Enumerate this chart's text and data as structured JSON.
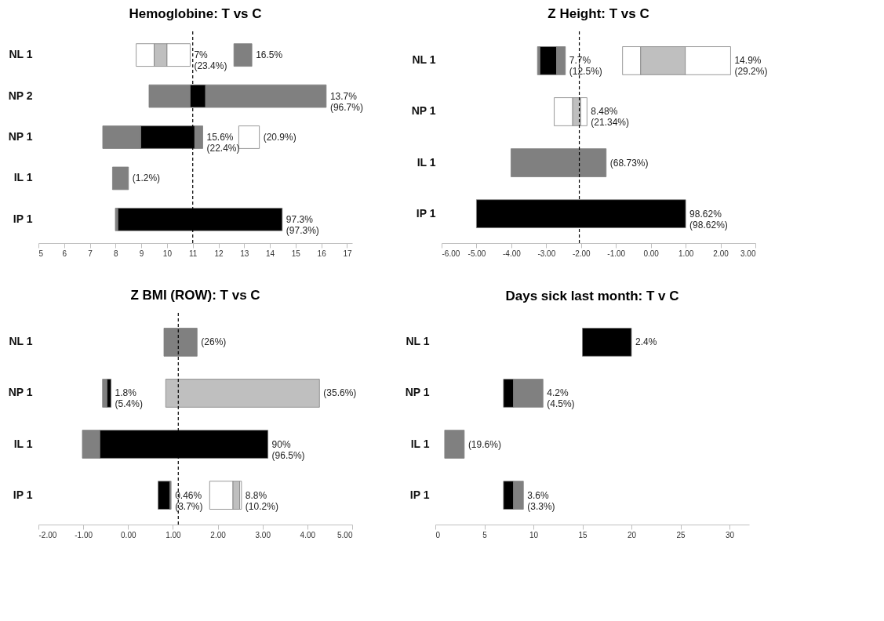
{
  "chart_data": [
    {
      "type": "bar",
      "orientation": "horizontal",
      "title": "Hemoglobine: T vs C",
      "categories": [
        "NL 1",
        "NP 2",
        "NP 1",
        "IL 1",
        "IP 1"
      ],
      "xlim": [
        5,
        17.2
      ],
      "xticks": [
        5,
        6,
        7,
        8,
        9,
        10,
        11,
        12,
        13,
        14,
        15,
        16,
        17
      ],
      "series": [
        {
          "color": "#808080",
          "base": [
            12.6,
            9.3,
            7.5,
            7.88,
            7.99
          ],
          "values": [
            0.7,
            1.6,
            1.48,
            0.62,
            0.1
          ]
        },
        {
          "color": "#000000",
          "base": [
            null,
            10.9,
            8.98,
            null,
            8.09
          ],
          "values": [
            null,
            0.6,
            2.1,
            null,
            6.39
          ]
        },
        {
          "color": "#808080",
          "base": [
            null,
            11.5,
            11.08,
            null,
            null
          ],
          "values": [
            null,
            4.69,
            0.31,
            null,
            null
          ]
        },
        {
          "color": "#ffffff",
          "base": [
            8.8,
            null,
            12.79,
            null,
            null
          ],
          "values": [
            0.7,
            null,
            0.8,
            null,
            null
          ]
        },
        {
          "color": "#bfbfbf",
          "base": [
            9.5,
            null,
            null,
            null,
            null
          ],
          "values": [
            0.5,
            null,
            null,
            null,
            null
          ]
        },
        {
          "color": "#ffffff",
          "base": [
            10.0,
            null,
            null,
            null,
            null
          ],
          "values": [
            0.9,
            null,
            null,
            null,
            null
          ]
        }
      ],
      "ref_lines": [
        {
          "axis": "x",
          "value": 11.0
        }
      ],
      "annotations": [
        {
          "text": "7%\n(23.4%)",
          "x": 10.9,
          "y": "NL 1"
        },
        {
          "text": "16.5%",
          "x": 13.3,
          "y": "NL 1"
        },
        {
          "text": "13.7%\n(96.7%)",
          "x": 16.19,
          "y": "NP 2"
        },
        {
          "text": "15.6%\n(22.4%)",
          "x": 11.39,
          "y": "NP 1"
        },
        {
          "text": "(20.9%)",
          "x": 13.59,
          "y": "NP 1"
        },
        {
          "text": "(1.2%)",
          "x": 8.5,
          "y": "IL 1"
        },
        {
          "text": "97.3%\n(97.3%)",
          "x": 14.48,
          "y": "IP 1"
        }
      ]
    },
    {
      "type": "bar",
      "orientation": "horizontal",
      "title": "Z Height: T vs C",
      "categories": [
        "NL 1",
        "NP 1",
        "IL 1",
        "IP 1"
      ],
      "xlim": [
        -6,
        3
      ],
      "xticks": [
        {
          "value": -6,
          "label": "-6.00"
        },
        {
          "value": -5,
          "label": "-5.00"
        },
        {
          "value": -4,
          "label": "-4.00"
        },
        {
          "value": -3,
          "label": "-3.00"
        },
        {
          "value": -2,
          "label": "-2.00"
        },
        {
          "value": -1,
          "label": "-1.00"
        },
        {
          "value": 0,
          "label": "0.00"
        },
        {
          "value": 1,
          "label": "1.00"
        },
        {
          "value": 2,
          "label": "2.00"
        },
        {
          "value": 3,
          "label": "3.00"
        }
      ],
      "series": [
        {
          "color": "#808080",
          "base": [
            -3.25,
            null,
            -4.01,
            null
          ],
          "values": [
            0.07,
            null,
            2.73,
            null
          ]
        },
        {
          "color": "#000000",
          "base": [
            -3.18,
            null,
            null,
            -5.0
          ],
          "values": [
            0.48,
            null,
            null,
            6.0
          ]
        },
        {
          "color": "#808080",
          "base": [
            -2.7,
            null,
            null,
            null
          ],
          "values": [
            0.25,
            null,
            null,
            null
          ]
        },
        {
          "color": "#ffffff",
          "base": [
            -0.81,
            -2.77,
            null,
            null
          ],
          "values": [
            0.52,
            0.53,
            null,
            null
          ]
        },
        {
          "color": "#bfbfbf",
          "base": [
            -0.29,
            -2.24,
            null,
            null
          ],
          "values": [
            1.28,
            0.23,
            null,
            null
          ]
        },
        {
          "color": "#ffffff",
          "base": [
            0.99,
            -2.01,
            null,
            null
          ],
          "values": [
            1.3,
            0.18,
            null,
            null
          ]
        }
      ],
      "ref_lines": [
        {
          "axis": "x",
          "value": -2.05
        }
      ],
      "annotations": [
        {
          "text": "7.7%\n(12.5%)",
          "x": -2.45,
          "y": "NL 1"
        },
        {
          "text": "14.9%\n(29.2%)",
          "x": 2.29,
          "y": "NL 1"
        },
        {
          "text": "8.48%\n(21.34%)",
          "x": -1.83,
          "y": "NP 1"
        },
        {
          "text": "(68.73%)",
          "x": -1.28,
          "y": "IL 1"
        },
        {
          "text": "98.62%\n(98.62%)",
          "x": 1.0,
          "y": "IP 1"
        }
      ]
    },
    {
      "type": "bar",
      "orientation": "horizontal",
      "title": "Z BMI (ROW): T vs C",
      "categories": [
        "NL 1",
        "NP 1",
        "IL 1",
        "IP 1"
      ],
      "xlim": [
        -2,
        5
      ],
      "xticks": [
        {
          "value": -2,
          "label": "-2.00"
        },
        {
          "value": -1,
          "label": "-1.00"
        },
        {
          "value": 0,
          "label": "0.00"
        },
        {
          "value": 1,
          "label": "1.00"
        },
        {
          "value": 2,
          "label": "2.00"
        },
        {
          "value": 3,
          "label": "3.00"
        },
        {
          "value": 4,
          "label": "4.00"
        },
        {
          "value": 5,
          "label": "5.00"
        }
      ],
      "series": [
        {
          "color": "#808080",
          "base": [
            0.8,
            -0.57,
            -1.02,
            0.93
          ],
          "values": [
            0.74,
            0.1,
            0.39,
            0.03
          ]
        },
        {
          "color": "#000000",
          "base": [
            null,
            -0.47,
            -0.63,
            0.67
          ],
          "values": [
            null,
            0.09,
            3.75,
            0.26
          ]
        },
        {
          "color": "#ffffff",
          "base": [
            null,
            null,
            null,
            1.82
          ],
          "values": [
            null,
            null,
            null,
            0.52
          ]
        },
        {
          "color": "#bfbfbf",
          "base": [
            null,
            0.84,
            null,
            2.34
          ],
          "values": [
            null,
            3.43,
            null,
            0.15
          ]
        },
        {
          "color": "#ffffff",
          "base": [
            null,
            null,
            null,
            2.49
          ],
          "values": [
            null,
            null,
            null,
            0.04
          ]
        }
      ],
      "ref_lines": [
        {
          "axis": "x",
          "value": 1.12
        }
      ],
      "annotations": [
        {
          "text": "(26%)",
          "x": 1.54,
          "y": "NL 1"
        },
        {
          "text": "1.8%\n(5.4%)",
          "x": -0.38,
          "y": "NP 1"
        },
        {
          "text": "(35.6%)",
          "x": 4.27,
          "y": "NP 1"
        },
        {
          "text": "90%\n(96.5%)",
          "x": 3.12,
          "y": "IL 1"
        },
        {
          "text": "0.46%\n(3.7%)",
          "x": 0.96,
          "y": "IP 1"
        },
        {
          "text": "8.8%\n(10.2%)",
          "x": 2.53,
          "y": "IP 1"
        }
      ]
    },
    {
      "type": "bar",
      "orientation": "horizontal",
      "title": "Days sick last month: T v C",
      "categories": [
        "NL 1",
        "NP 1",
        "IL 1",
        "IP 1"
      ],
      "xlim": [
        0,
        32
      ],
      "xticks": [
        0,
        5,
        10,
        15,
        20,
        25,
        30
      ],
      "series": [
        {
          "color": "#000000",
          "base": [
            15,
            6.95,
            null,
            6.95
          ],
          "values": [
            5,
            1.03,
            null,
            1.03
          ]
        },
        {
          "color": "#808080",
          "base": [
            null,
            7.98,
            0.95,
            7.98
          ],
          "values": [
            null,
            3.0,
            2.0,
            1.0
          ]
        }
      ],
      "annotations": [
        {
          "text": "2.4%",
          "x": 20,
          "y": "NL 1"
        },
        {
          "text": "4.2%\n(4.5%)",
          "x": 10.98,
          "y": "NP 1"
        },
        {
          "text": "(19.6%)",
          "x": 2.95,
          "y": "IL 1"
        },
        {
          "text": "3.6%\n(3.3%)",
          "x": 8.98,
          "y": "IP 1"
        }
      ]
    }
  ]
}
